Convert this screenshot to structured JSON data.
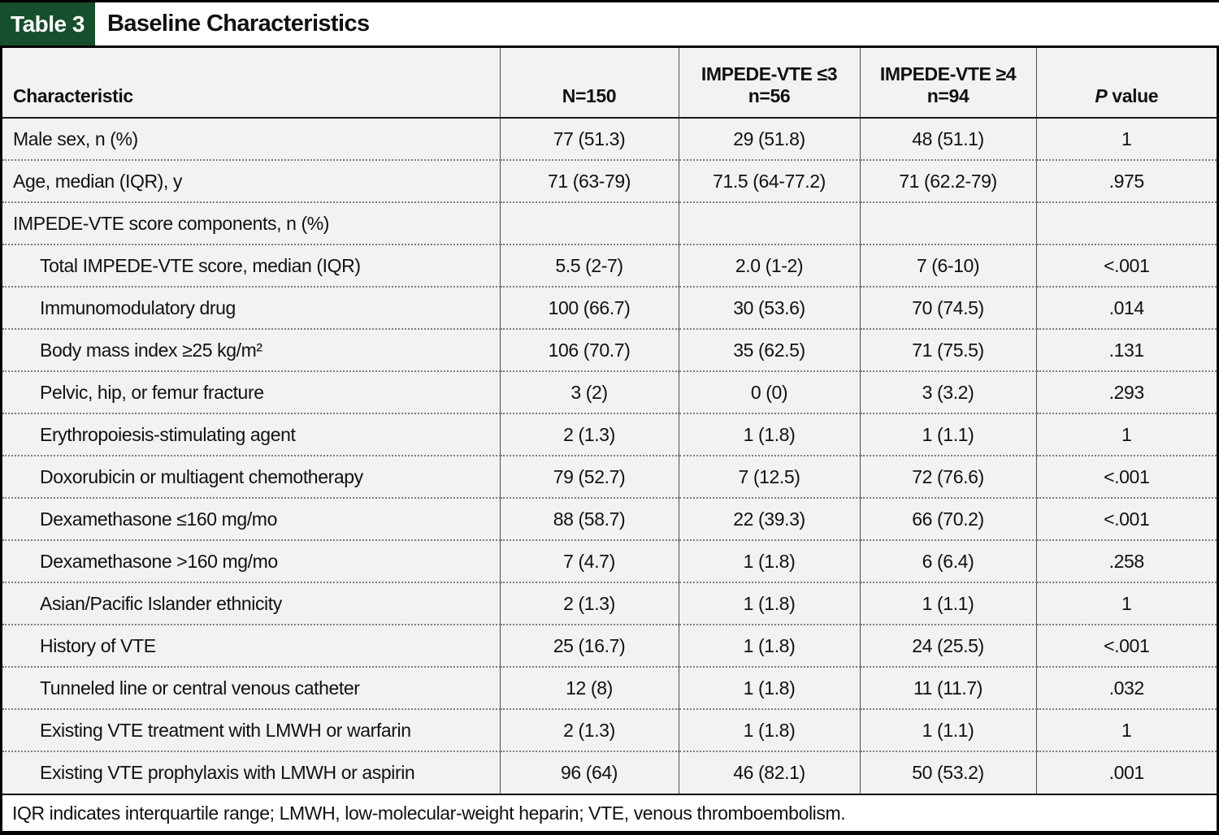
{
  "title": {
    "tag": "Table 3",
    "heading": "Baseline Characteristics"
  },
  "colors": {
    "tag_green": "#164F2B",
    "row_background": "#F2F2F0",
    "border_black": "#000000"
  },
  "table": {
    "columns": {
      "characteristic": "Characteristic",
      "total": "N=150",
      "le3_line1": "IMPEDE-VTE ≤3",
      "le3_line2": "n=56",
      "ge4_line1": "IMPEDE-VTE ≥4",
      "ge4_line2": "n=94",
      "p_italic": "P",
      "p_rest": " value"
    },
    "rows": [
      {
        "label": "Male sex, n (%)",
        "values": [
          "77 (51.3)",
          "29 (51.8)",
          "48 (51.1)",
          "1"
        ]
      },
      {
        "label": "Age, median (IQR), y",
        "values": [
          "71 (63-79)",
          "71.5 (64-77.2)",
          "71 (62.2-79)",
          ".975"
        ]
      },
      {
        "label": "IMPEDE-VTE score components, n (%)",
        "values": [
          "",
          "",
          "",
          ""
        ]
      },
      {
        "label": "Total IMPEDE-VTE score, median (IQR)",
        "values": [
          "5.5 (2-7)",
          "2.0 (1-2)",
          "7 (6-10)",
          "<.001"
        ]
      },
      {
        "label": "Immunomodulatory drug",
        "values": [
          "100 (66.7)",
          "30 (53.6)",
          "70 (74.5)",
          ".014"
        ]
      },
      {
        "label": "Body mass index ≥25 kg/m²",
        "values": [
          "106 (70.7)",
          "35 (62.5)",
          "71 (75.5)",
          ".131"
        ]
      },
      {
        "label": "Pelvic, hip, or femur fracture",
        "values": [
          "3 (2)",
          "0 (0)",
          "3 (3.2)",
          ".293"
        ]
      },
      {
        "label": "Erythropoiesis-stimulating agent",
        "values": [
          "2 (1.3)",
          "1 (1.8)",
          "1 (1.1)",
          "1"
        ]
      },
      {
        "label": "Doxorubicin or multiagent chemotherapy",
        "values": [
          "79 (52.7)",
          "7 (12.5)",
          "72 (76.6)",
          "<.001"
        ]
      },
      {
        "label": "Dexamethasone ≤160 mg/mo",
        "values": [
          "88 (58.7)",
          "22 (39.3)",
          "66 (70.2)",
          "<.001"
        ]
      },
      {
        "label": "Dexamethasone >160 mg/mo",
        "values": [
          "7 (4.7)",
          "1 (1.8)",
          "6 (6.4)",
          ".258"
        ]
      },
      {
        "label": "Asian/Pacific Islander ethnicity",
        "values": [
          "2 (1.3)",
          "1 (1.8)",
          "1 (1.1)",
          "1"
        ]
      },
      {
        "label": "History of VTE",
        "values": [
          "25 (16.7)",
          "1 (1.8)",
          "24 (25.5)",
          "<.001"
        ]
      },
      {
        "label": "Tunneled line or central venous catheter",
        "values": [
          "12 (8)",
          "1 (1.8)",
          "11 (11.7)",
          ".032"
        ]
      },
      {
        "label": "Existing VTE treatment with LMWH or warfarin",
        "values": [
          "2 (1.3)",
          "1 (1.8)",
          "1 (1.1)",
          "1"
        ]
      },
      {
        "label": "Existing VTE prophylaxis with LMWH or aspirin",
        "values": [
          "96 (64)",
          "46 (82.1)",
          "50 (53.2)",
          ".001"
        ]
      }
    ]
  },
  "footnote": "IQR indicates interquartile range; LMWH, low-molecular-weight heparin; VTE, venous thromboembolism."
}
